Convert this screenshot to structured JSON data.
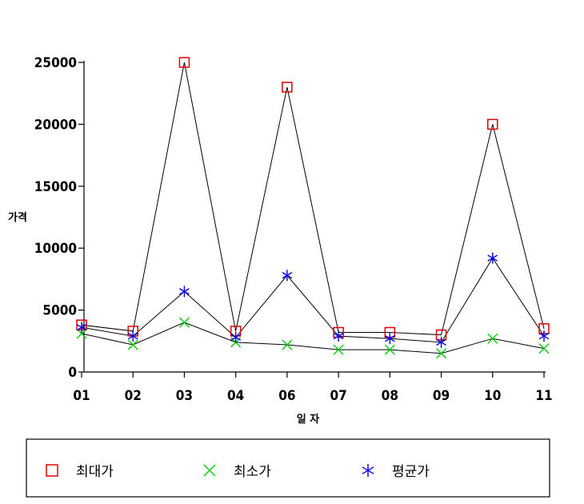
{
  "chart_data": {
    "type": "line",
    "title": "",
    "xlabel": "일 자",
    "ylabel": "가격",
    "categories": [
      "01",
      "02",
      "03",
      "04",
      "06",
      "07",
      "08",
      "09",
      "10",
      "11"
    ],
    "ylim": [
      0,
      25000
    ],
    "yticks": [
      0,
      5000,
      10000,
      15000,
      20000,
      25000
    ],
    "grid": false,
    "legend_position": "bottom",
    "series": [
      {
        "name": "최대가",
        "marker": "square",
        "marker_color": "#e00000",
        "values": [
          3800,
          3300,
          25000,
          3300,
          23000,
          3200,
          3200,
          3000,
          20000,
          3500
        ]
      },
      {
        "name": "최소가",
        "marker": "x",
        "marker_color": "#00d000",
        "values": [
          3100,
          2200,
          4000,
          2400,
          2200,
          1800,
          1800,
          1500,
          2700,
          1900
        ]
      },
      {
        "name": "평균가",
        "marker": "asterisk",
        "marker_color": "#0000ee",
        "values": [
          3600,
          2900,
          6500,
          2800,
          7800,
          2900,
          2700,
          2400,
          9200,
          2900
        ]
      }
    ]
  }
}
